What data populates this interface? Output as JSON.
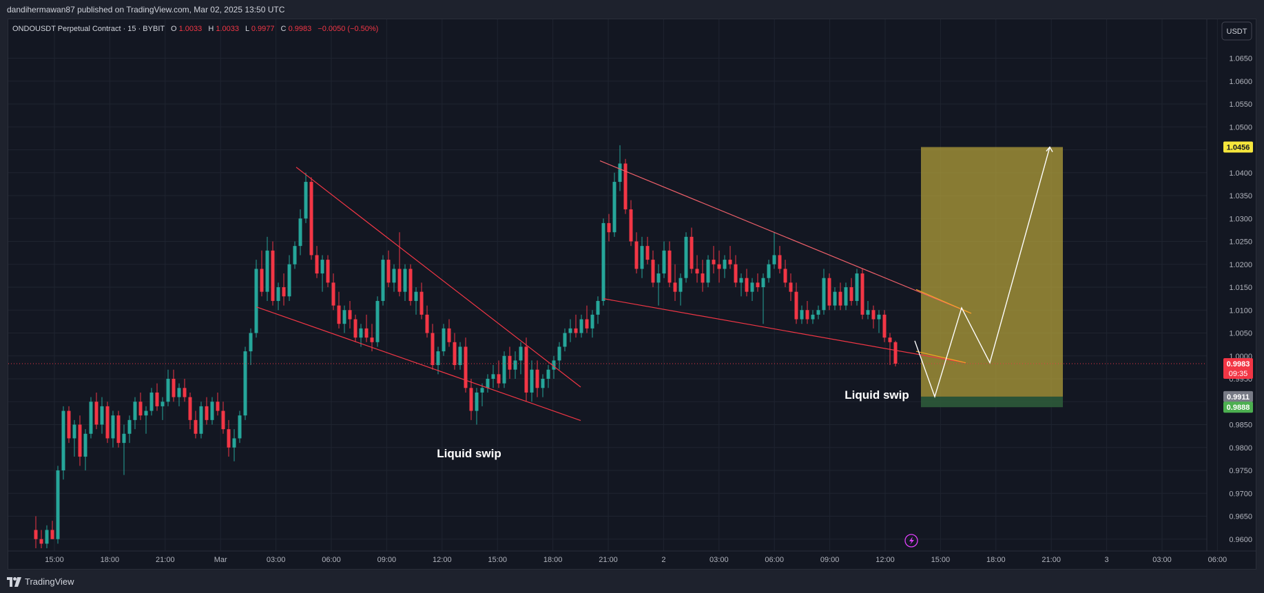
{
  "header": {
    "published_text": "dandihermawan87 published on TradingView.com, Mar 02, 2025 13:50 UTC"
  },
  "footer": {
    "brand": "TradingView"
  },
  "legend": {
    "symbol": "ONDOUSDT Perpetual Contract · 15 · BYBIT",
    "o_label": "O",
    "o_value": "1.0033",
    "h_label": "H",
    "h_value": "1.0033",
    "l_label": "L",
    "l_value": "0.9977",
    "c_label": "C",
    "c_value": "0.9983",
    "change": "−0.0050 (−0.50%)"
  },
  "currency_button": "USDT",
  "colors": {
    "up": "#26a69a",
    "down": "#f23645",
    "trendline": "#f23645",
    "zone": "#b5a23a",
    "stop_zone": "#2e5a3a",
    "path": "#ffffff",
    "target_badge": "#f5e63c",
    "current_badge": "#f23645",
    "entry_badge": "#787b86",
    "stop_badge": "#4caf50"
  },
  "chart_data": {
    "type": "candlestick",
    "title": "",
    "xlabel": "",
    "ylabel": "",
    "ylim": [
      0.958,
      1.066
    ],
    "y_ticks": [
      "1.0650",
      "1.0600",
      "1.0550",
      "1.0500",
      "1.0450",
      "1.0400",
      "1.0350",
      "1.0300",
      "1.0250",
      "1.0200",
      "1.0150",
      "1.0100",
      "1.0050",
      "1.0000",
      "0.9950",
      "0.9900",
      "0.9850",
      "0.9800",
      "0.9750",
      "0.9700",
      "0.9650",
      "0.9600"
    ],
    "x_ticks": [
      "15:00",
      "18:00",
      "21:00",
      "Mar",
      "03:00",
      "06:00",
      "09:00",
      "12:00",
      "15:00",
      "18:00",
      "21:00",
      "2",
      "03:00",
      "06:00",
      "09:00",
      "12:00",
      "15:00",
      "18:00",
      "21:00",
      "3",
      "03:00",
      "06:00"
    ],
    "candles": [
      [
        0.962,
        0.965,
        0.958,
        0.96
      ],
      [
        0.96,
        0.962,
        0.958,
        0.959
      ],
      [
        0.959,
        0.963,
        0.958,
        0.962
      ],
      [
        0.962,
        0.964,
        0.96,
        0.96
      ],
      [
        0.96,
        0.976,
        0.959,
        0.975
      ],
      [
        0.975,
        0.989,
        0.973,
        0.988
      ],
      [
        0.988,
        0.989,
        0.981,
        0.982
      ],
      [
        0.982,
        0.986,
        0.978,
        0.985
      ],
      [
        0.985,
        0.987,
        0.976,
        0.978
      ],
      [
        0.978,
        0.984,
        0.975,
        0.983
      ],
      [
        0.983,
        0.991,
        0.982,
        0.99
      ],
      [
        0.99,
        0.992,
        0.984,
        0.985
      ],
      [
        0.985,
        0.991,
        0.983,
        0.989
      ],
      [
        0.989,
        0.99,
        0.981,
        0.982
      ],
      [
        0.982,
        0.988,
        0.98,
        0.987
      ],
      [
        0.987,
        0.988,
        0.98,
        0.981
      ],
      [
        0.981,
        0.985,
        0.974,
        0.983
      ],
      [
        0.983,
        0.987,
        0.981,
        0.986
      ],
      [
        0.986,
        0.991,
        0.984,
        0.99
      ],
      [
        0.99,
        0.992,
        0.986,
        0.987
      ],
      [
        0.987,
        0.989,
        0.983,
        0.988
      ],
      [
        0.988,
        0.993,
        0.987,
        0.992
      ],
      [
        0.992,
        0.994,
        0.988,
        0.989
      ],
      [
        0.989,
        0.991,
        0.986,
        0.99
      ],
      [
        0.99,
        0.997,
        0.989,
        0.995
      ],
      [
        0.995,
        0.997,
        0.99,
        0.991
      ],
      [
        0.991,
        0.994,
        0.989,
        0.993
      ],
      [
        0.993,
        0.995,
        0.99,
        0.991
      ],
      [
        0.991,
        0.992,
        0.984,
        0.986
      ],
      [
        0.986,
        0.988,
        0.982,
        0.983
      ],
      [
        0.983,
        0.99,
        0.982,
        0.989
      ],
      [
        0.989,
        0.991,
        0.985,
        0.986
      ],
      [
        0.986,
        0.991,
        0.985,
        0.99
      ],
      [
        0.99,
        0.992,
        0.987,
        0.988
      ],
      [
        0.988,
        0.99,
        0.983,
        0.984
      ],
      [
        0.984,
        0.986,
        0.978,
        0.98
      ],
      [
        0.98,
        0.984,
        0.977,
        0.982
      ],
      [
        0.982,
        0.988,
        0.981,
        0.987
      ],
      [
        0.987,
        1.002,
        0.986,
        1.001
      ],
      [
        1.001,
        1.006,
        0.998,
        1.005
      ],
      [
        1.005,
        1.021,
        1.004,
        1.019
      ],
      [
        1.019,
        1.023,
        1.013,
        1.014
      ],
      [
        1.014,
        1.026,
        1.012,
        1.023
      ],
      [
        1.023,
        1.025,
        1.011,
        1.012
      ],
      [
        1.012,
        1.016,
        1.01,
        1.015
      ],
      [
        1.015,
        1.018,
        1.011,
        1.013
      ],
      [
        1.013,
        1.022,
        1.012,
        1.02
      ],
      [
        1.02,
        1.025,
        1.019,
        1.024
      ],
      [
        1.024,
        1.032,
        1.022,
        1.03
      ],
      [
        1.03,
        1.04,
        1.029,
        1.038
      ],
      [
        1.038,
        1.039,
        1.021,
        1.022
      ],
      [
        1.022,
        1.024,
        1.017,
        1.018
      ],
      [
        1.018,
        1.022,
        1.014,
        1.021
      ],
      [
        1.021,
        1.022,
        1.015,
        1.016
      ],
      [
        1.016,
        1.018,
        1.01,
        1.011
      ],
      [
        1.011,
        1.014,
        1.006,
        1.007
      ],
      [
        1.007,
        1.011,
        1.005,
        1.01
      ],
      [
        1.01,
        1.012,
        1.006,
        1.008
      ],
      [
        1.008,
        1.009,
        1.003,
        1.004
      ],
      [
        1.004,
        1.007,
        1.002,
        1.006
      ],
      [
        1.006,
        1.009,
        1.003,
        1.004
      ],
      [
        1.004,
        1.007,
        1.001,
        1.003
      ],
      [
        1.003,
        1.013,
        1.002,
        1.012
      ],
      [
        1.012,
        1.022,
        1.011,
        1.021
      ],
      [
        1.021,
        1.023,
        1.015,
        1.016
      ],
      [
        1.016,
        1.02,
        1.014,
        1.019
      ],
      [
        1.019,
        1.027,
        1.013,
        1.014
      ],
      [
        1.014,
        1.02,
        1.012,
        1.019
      ],
      [
        1.019,
        1.02,
        1.011,
        1.012
      ],
      [
        1.012,
        1.015,
        1.009,
        1.014
      ],
      [
        1.014,
        1.016,
        1.008,
        1.009
      ],
      [
        1.009,
        1.011,
        1.004,
        1.005
      ],
      [
        1.005,
        1.007,
        0.997,
        0.998
      ],
      [
        0.998,
        1.002,
        0.996,
        1.001
      ],
      [
        1.001,
        1.007,
        1.0,
        1.006
      ],
      [
        1.006,
        1.008,
        1.002,
        1.003
      ],
      [
        1.003,
        1.005,
        0.997,
        0.998
      ],
      [
        0.998,
        1.003,
        0.997,
        1.002
      ],
      [
        1.002,
        1.004,
        0.992,
        0.993
      ],
      [
        0.993,
        0.995,
        0.986,
        0.988
      ],
      [
        0.988,
        0.993,
        0.985,
        0.992
      ],
      [
        0.992,
        0.994,
        0.989,
        0.993
      ],
      [
        0.993,
        0.996,
        0.992,
        0.995
      ],
      [
        0.995,
        0.998,
        0.993,
        0.996
      ],
      [
        0.996,
        0.999,
        0.993,
        0.994
      ],
      [
        0.994,
        1.001,
        0.993,
        1.0
      ],
      [
        1.0,
        1.002,
        0.995,
        0.997
      ],
      [
        0.997,
        1.001,
        0.995,
        0.999
      ],
      [
        0.999,
        1.003,
        0.996,
        1.002
      ],
      [
        1.002,
        1.004,
        0.99,
        0.992
      ],
      [
        0.992,
        0.999,
        0.99,
        0.997
      ],
      [
        0.997,
        0.999,
        0.991,
        0.993
      ],
      [
        0.993,
        0.996,
        0.991,
        0.995
      ],
      [
        0.995,
        0.998,
        0.993,
        0.997
      ],
      [
        0.997,
        1.0,
        0.995,
        0.999
      ],
      [
        0.999,
        1.003,
        0.997,
        1.002
      ],
      [
        1.002,
        1.006,
        1.001,
        1.005
      ],
      [
        1.005,
        1.008,
        1.003,
        1.006
      ],
      [
        1.006,
        1.009,
        1.004,
        1.005
      ],
      [
        1.005,
        1.009,
        1.004,
        1.008
      ],
      [
        1.008,
        1.011,
        1.005,
        1.006
      ],
      [
        1.006,
        1.01,
        1.004,
        1.009
      ],
      [
        1.009,
        1.013,
        1.007,
        1.012
      ],
      [
        1.012,
        1.03,
        1.011,
        1.029
      ],
      [
        1.029,
        1.031,
        1.025,
        1.027
      ],
      [
        1.027,
        1.04,
        1.026,
        1.038
      ],
      [
        1.038,
        1.046,
        1.036,
        1.042
      ],
      [
        1.042,
        1.043,
        1.031,
        1.032
      ],
      [
        1.032,
        1.034,
        1.024,
        1.025
      ],
      [
        1.025,
        1.027,
        1.018,
        1.019
      ],
      [
        1.019,
        1.026,
        1.017,
        1.024
      ],
      [
        1.024,
        1.026,
        1.02,
        1.021
      ],
      [
        1.021,
        1.023,
        1.015,
        1.016
      ],
      [
        1.016,
        1.02,
        1.011,
        1.018
      ],
      [
        1.018,
        1.025,
        1.017,
        1.023
      ],
      [
        1.023,
        1.025,
        1.015,
        1.016
      ],
      [
        1.016,
        1.02,
        1.012,
        1.014
      ],
      [
        1.014,
        1.018,
        1.011,
        1.017
      ],
      [
        1.017,
        1.027,
        1.016,
        1.026
      ],
      [
        1.026,
        1.028,
        1.018,
        1.019
      ],
      [
        1.019,
        1.022,
        1.016,
        1.018
      ],
      [
        1.018,
        1.021,
        1.014,
        1.016
      ],
      [
        1.016,
        1.022,
        1.015,
        1.021
      ],
      [
        1.021,
        1.024,
        1.018,
        1.02
      ],
      [
        1.02,
        1.023,
        1.016,
        1.019
      ],
      [
        1.019,
        1.022,
        1.017,
        1.021
      ],
      [
        1.021,
        1.024,
        1.019,
        1.02
      ],
      [
        1.02,
        1.022,
        1.015,
        1.016
      ],
      [
        1.016,
        1.018,
        1.013,
        1.017
      ],
      [
        1.017,
        1.019,
        1.013,
        1.014
      ],
      [
        1.014,
        1.017,
        1.012,
        1.016
      ],
      [
        1.016,
        1.018,
        1.014,
        1.015
      ],
      [
        1.015,
        1.018,
        1.007,
        1.017
      ],
      [
        1.017,
        1.021,
        1.016,
        1.02
      ],
      [
        1.02,
        1.027,
        1.019,
        1.022
      ],
      [
        1.022,
        1.024,
        1.018,
        1.019
      ],
      [
        1.019,
        1.021,
        1.015,
        1.016
      ],
      [
        1.016,
        1.018,
        1.012,
        1.014
      ],
      [
        1.014,
        1.016,
        1.007,
        1.008
      ],
      [
        1.008,
        1.011,
        1.007,
        1.01
      ],
      [
        1.01,
        1.012,
        1.007,
        1.008
      ],
      [
        1.008,
        1.01,
        1.007,
        1.009
      ],
      [
        1.009,
        1.011,
        1.008,
        1.01
      ],
      [
        1.01,
        1.019,
        1.009,
        1.017
      ],
      [
        1.017,
        1.018,
        1.01,
        1.011
      ],
      [
        1.011,
        1.015,
        1.01,
        1.014
      ],
      [
        1.014,
        1.016,
        1.01,
        1.011
      ],
      [
        1.011,
        1.016,
        1.01,
        1.015
      ],
      [
        1.015,
        1.017,
        1.011,
        1.012
      ],
      [
        1.012,
        1.019,
        1.011,
        1.018
      ],
      [
        1.018,
        1.019,
        1.008,
        1.009
      ],
      [
        1.009,
        1.012,
        1.008,
        1.01
      ],
      [
        1.01,
        1.011,
        1.006,
        1.008
      ],
      [
        1.008,
        1.01,
        1.005,
        1.009
      ],
      [
        1.009,
        1.01,
        1.003,
        1.004
      ],
      [
        1.004,
        1.005,
        0.998,
        1.003
      ],
      [
        1.003,
        1.0033,
        0.9977,
        0.9983
      ]
    ],
    "trendlines": [
      {
        "from": [
          0,
          1.0107
        ],
        "to": [
          0,
          0.9859
        ]
      },
      {
        "from": [
          0,
          1.0412
        ],
        "to": [
          0,
          0.9932
        ]
      },
      {
        "from": [
          0,
          1.0426
        ],
        "to": [
          0,
          1.0093
        ]
      },
      {
        "from": [
          0,
          1.0125
        ],
        "to": [
          0,
          0.9985
        ]
      }
    ],
    "position_zone": {
      "target": 1.0456,
      "entry": 0.9911,
      "stop": 0.9888
    },
    "projected_path": [
      1.0033,
      0.9911,
      1.0105,
      0.9985,
      1.0456
    ],
    "annotations": [
      "Liquid swip",
      "Liquid swip"
    ],
    "price_labels": {
      "target": "1.0456",
      "current": "0.9983",
      "countdown": "09:35",
      "entry": "0.9911",
      "stop": "0.9888"
    }
  }
}
